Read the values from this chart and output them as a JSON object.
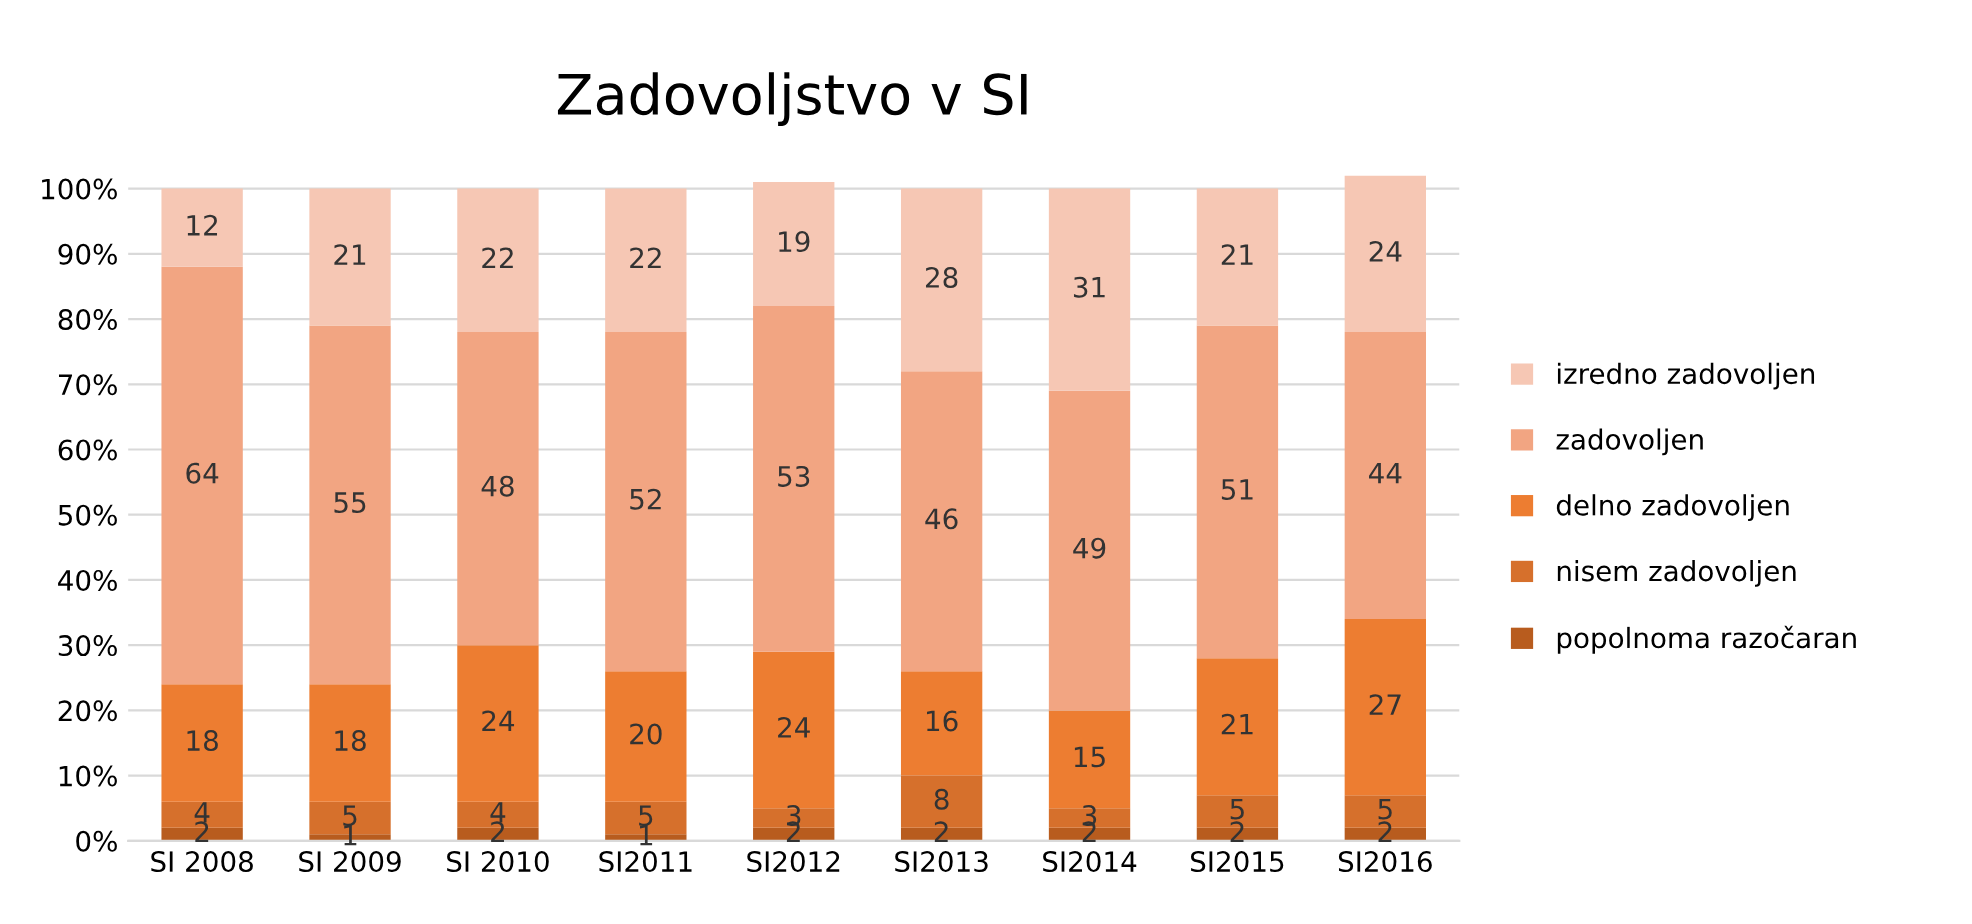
{
  "chart_data": {
    "type": "bar",
    "title": "Zadovoljstvo v SI",
    "stacked": true,
    "categories": [
      "SI 2008",
      "SI 2009",
      "SI 2010",
      "SI2011",
      "SI2012",
      "SI2013",
      "SI2014",
      "SI2015",
      "SI2016"
    ],
    "series": [
      {
        "name": "popolnoma razočaran",
        "color": "#b85c1e",
        "values": [
          2,
          1,
          2,
          1,
          2,
          2,
          2,
          2,
          2
        ]
      },
      {
        "name": "nisem zadovoljen",
        "color": "#d6702c",
        "values": [
          4,
          5,
          4,
          5,
          3,
          8,
          3,
          5,
          5
        ]
      },
      {
        "name": "delno zadovoljen",
        "color": "#ed7d31",
        "values": [
          18,
          18,
          24,
          20,
          24,
          16,
          15,
          21,
          27
        ]
      },
      {
        "name": "zadovoljen",
        "color": "#f2a582",
        "values": [
          64,
          55,
          48,
          52,
          53,
          46,
          49,
          51,
          44
        ]
      },
      {
        "name": "izredno zadovoljen",
        "color": "#f6c7b4",
        "values": [
          12,
          21,
          22,
          22,
          19,
          28,
          31,
          21,
          24
        ]
      }
    ],
    "ylim": [
      0,
      102
    ],
    "yticks": [
      {
        "value": 0,
        "label": "0%"
      },
      {
        "value": 10,
        "label": "10%"
      },
      {
        "value": 20,
        "label": "20%"
      },
      {
        "value": 30,
        "label": "30%"
      },
      {
        "value": 40,
        "label": "40%"
      },
      {
        "value": 50,
        "label": "50%"
      },
      {
        "value": 60,
        "label": "60%"
      },
      {
        "value": 70,
        "label": "70%"
      },
      {
        "value": 80,
        "label": "80%"
      },
      {
        "value": 90,
        "label": "90%"
      },
      {
        "value": 100,
        "label": "100%"
      }
    ],
    "grid": "y",
    "legend": "right",
    "data_labels": true
  }
}
